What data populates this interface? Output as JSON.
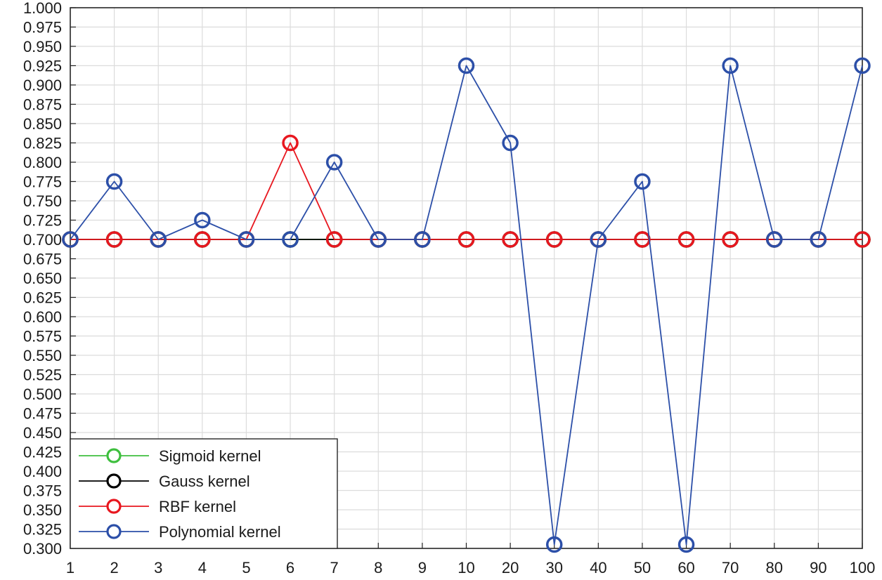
{
  "chart_data": {
    "type": "line",
    "title": "",
    "xlabel": "",
    "ylabel": "",
    "grid": true,
    "legend_position": "bottom-left",
    "categories": [
      "1",
      "2",
      "3",
      "4",
      "5",
      "6",
      "7",
      "8",
      "9",
      "10",
      "20",
      "30",
      "40",
      "50",
      "60",
      "70",
      "80",
      "90",
      "100"
    ],
    "ylim": [
      0.3,
      1.0
    ],
    "y_ticks": [
      "0.300",
      "0.325",
      "0.350",
      "0.375",
      "0.400",
      "0.425",
      "0.450",
      "0.475",
      "0.500",
      "0.525",
      "0.550",
      "0.575",
      "0.600",
      "0.625",
      "0.650",
      "0.675",
      "0.700",
      "0.725",
      "0.750",
      "0.775",
      "0.800",
      "0.825",
      "0.850",
      "0.875",
      "0.900",
      "0.925",
      "0.950",
      "0.975",
      "1.000"
    ],
    "series": [
      {
        "name": "Sigmoid kernel",
        "color": "#3fbf3f",
        "values": [
          0.7,
          0.7,
          0.7,
          0.7,
          0.7,
          0.7,
          0.7,
          0.7,
          0.7,
          0.7,
          0.7,
          0.7,
          0.7,
          0.7,
          0.7,
          0.7,
          0.7,
          0.7,
          0.7
        ]
      },
      {
        "name": "Gauss kernel",
        "color": "#000000",
        "values": [
          0.7,
          0.7,
          0.7,
          0.7,
          0.7,
          0.7,
          0.7,
          0.7,
          0.7,
          0.7,
          0.7,
          0.7,
          0.7,
          0.7,
          0.7,
          0.7,
          0.7,
          0.7,
          0.7
        ]
      },
      {
        "name": "RBF kernel",
        "color": "#e8171f",
        "values": [
          0.7,
          0.7,
          0.7,
          0.7,
          0.7,
          0.825,
          0.7,
          0.7,
          0.7,
          0.7,
          0.7,
          0.7,
          0.7,
          0.7,
          0.7,
          0.7,
          0.7,
          0.7,
          0.7
        ]
      },
      {
        "name": "Polynomial kernel",
        "color": "#2c4fa8",
        "values": [
          0.7,
          0.775,
          0.7,
          0.725,
          0.7,
          0.7,
          0.8,
          0.7,
          0.7,
          0.925,
          0.825,
          0.305,
          0.7,
          0.775,
          0.305,
          0.925,
          0.7,
          0.7,
          0.925
        ]
      }
    ]
  }
}
